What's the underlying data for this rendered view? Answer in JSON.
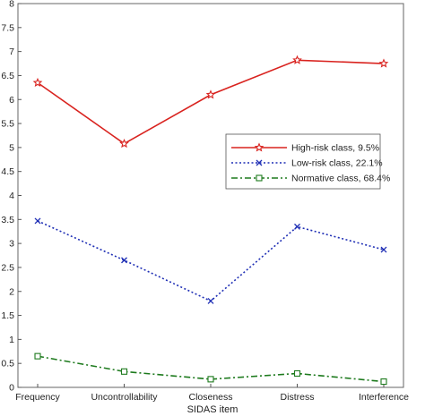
{
  "chart_data": {
    "type": "line",
    "title": "",
    "xlabel": "SIDAS item",
    "ylabel": "",
    "categories": [
      "Frequency",
      "Uncontrollability",
      "Closeness",
      "Distress",
      "Interference"
    ],
    "ylim": [
      0,
      8
    ],
    "yticks": [
      "0",
      "0.5",
      "1",
      "1.5",
      "2",
      "2.5",
      "3",
      "3.5",
      "4",
      "4.5",
      "5",
      "5.5",
      "6",
      "6.5",
      "7",
      "7.5",
      "8"
    ],
    "grid": false,
    "legend_position": "right",
    "series": [
      {
        "name": "High-risk class, 9.5%",
        "values": [
          6.35,
          5.08,
          6.1,
          6.82,
          6.75
        ],
        "color": "#d9231f",
        "line_style": "solid",
        "marker": "star"
      },
      {
        "name": "Low-risk class, 22.1%",
        "values": [
          3.47,
          2.65,
          1.8,
          3.35,
          2.87
        ],
        "color": "#1f2fb5",
        "line_style": "dotted",
        "marker": "x"
      },
      {
        "name": "Normative class, 68.4%",
        "values": [
          0.65,
          0.33,
          0.17,
          0.29,
          0.12
        ],
        "color": "#1d7a1d",
        "line_style": "dash-dot",
        "marker": "square"
      }
    ]
  }
}
